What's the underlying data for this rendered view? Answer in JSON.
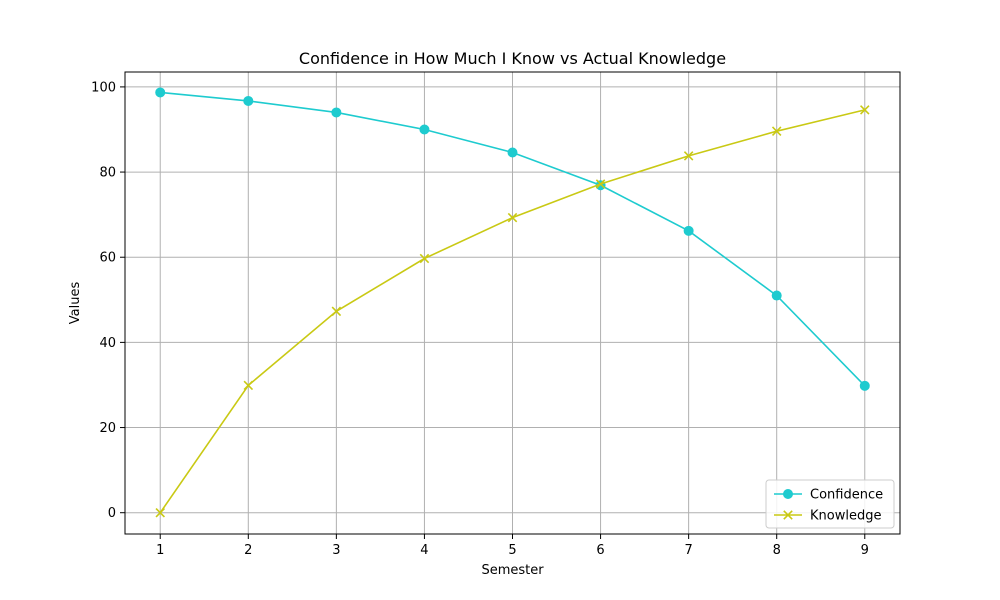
{
  "chart_data": {
    "type": "line",
    "title": "Confidence in How Much I Know vs Actual Knowledge",
    "xlabel": "Semester",
    "ylabel": "Values",
    "x": [
      1,
      2,
      3,
      4,
      5,
      6,
      7,
      8,
      9
    ],
    "xlim": [
      0.6,
      9.4
    ],
    "ylim": [
      -5,
      103.5
    ],
    "xticks": [
      1,
      2,
      3,
      4,
      5,
      6,
      7,
      8,
      9
    ],
    "yticks": [
      0,
      20,
      40,
      60,
      80,
      100
    ],
    "grid": true,
    "legend_position": "bottom-right",
    "series": [
      {
        "name": "Confidence",
        "color": "#1ecbcf",
        "marker": "circle",
        "values": [
          98.7,
          96.7,
          94.0,
          90.0,
          84.6,
          76.9,
          66.2,
          51.0,
          29.8
        ]
      },
      {
        "name": "Knowledge",
        "color": "#c9c914",
        "marker": "x",
        "values": [
          0.0,
          29.9,
          47.3,
          59.7,
          69.3,
          77.2,
          83.8,
          89.6,
          94.6
        ]
      }
    ]
  }
}
